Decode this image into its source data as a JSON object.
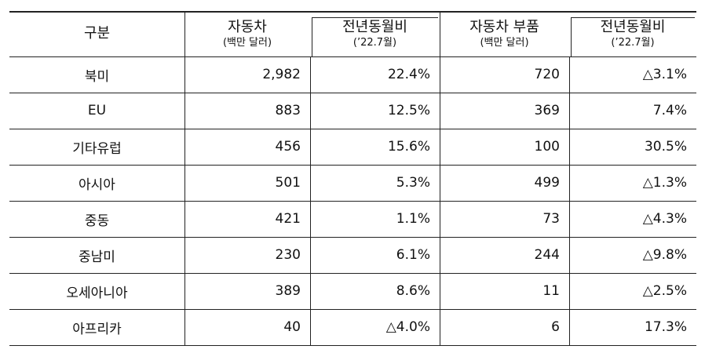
{
  "table": {
    "header": [
      {
        "title": "구분"
      },
      {
        "title": "자동차",
        "sub": "(백만 달러)"
      },
      {
        "title": "전년동월비",
        "sub": "(’22.7월)"
      },
      {
        "title": "자동차 부품",
        "sub": "(백만 달러)"
      },
      {
        "title": "전년동월비",
        "sub": "(’22.7월)"
      }
    ],
    "rows": [
      [
        "북미",
        "2,982",
        "22.4%",
        "720",
        "△3.1%"
      ],
      [
        "EU",
        "883",
        "12.5%",
        "369",
        "7.4%"
      ],
      [
        "기타유럽",
        "456",
        "15.6%",
        "100",
        "30.5%"
      ],
      [
        "아시아",
        "501",
        "5.3%",
        "499",
        "△1.3%"
      ],
      [
        "중동",
        "421",
        "1.1%",
        "73",
        "△4.3%"
      ],
      [
        "중남미",
        "230",
        "6.1%",
        "244",
        "△9.8%"
      ],
      [
        "오세아니아",
        "389",
        "8.6%",
        "11",
        "△2.5%"
      ],
      [
        "아프리카",
        "40",
        "△4.0%",
        "6",
        "17.3%"
      ]
    ]
  }
}
